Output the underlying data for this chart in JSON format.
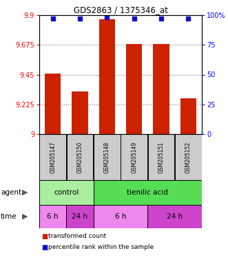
{
  "title": "GDS2863 / 1375346_at",
  "samples": [
    "GSM205147",
    "GSM205150",
    "GSM205148",
    "GSM205149",
    "GSM205151",
    "GSM205152"
  ],
  "bar_values": [
    9.46,
    9.32,
    9.87,
    9.68,
    9.68,
    9.27
  ],
  "percentile_values": [
    97,
    97,
    98,
    97,
    97,
    97
  ],
  "y_min": 9.0,
  "y_max": 9.9,
  "y_ticks": [
    9.0,
    9.225,
    9.45,
    9.675,
    9.9
  ],
  "y_tick_labels": [
    "9",
    "9.225",
    "9.45",
    "9.675",
    "9.9"
  ],
  "y2_ticks": [
    0,
    25,
    50,
    75,
    100
  ],
  "y2_tick_labels": [
    "0",
    "25",
    "50",
    "75",
    "100%"
  ],
  "bar_color": "#cc2200",
  "dot_color": "#1111cc",
  "sample_bg_color": "#cccccc",
  "grid_color": "#777777",
  "agent_row": [
    {
      "label": "control",
      "start": 0,
      "end": 2,
      "color": "#aaeea0"
    },
    {
      "label": "tienilic acid",
      "start": 2,
      "end": 6,
      "color": "#55dd55"
    }
  ],
  "time_row": [
    {
      "label": "6 h",
      "start": 0,
      "end": 1,
      "color": "#ee88ee"
    },
    {
      "label": "24 h",
      "start": 1,
      "end": 2,
      "color": "#cc44cc"
    },
    {
      "label": "6 h",
      "start": 2,
      "end": 4,
      "color": "#ee88ee"
    },
    {
      "label": "24 h",
      "start": 4,
      "end": 6,
      "color": "#cc44cc"
    }
  ],
  "legend_red_label": "transformed count",
  "legend_blue_label": "percentile rank within the sample",
  "agent_label": "agent",
  "time_label": "time"
}
